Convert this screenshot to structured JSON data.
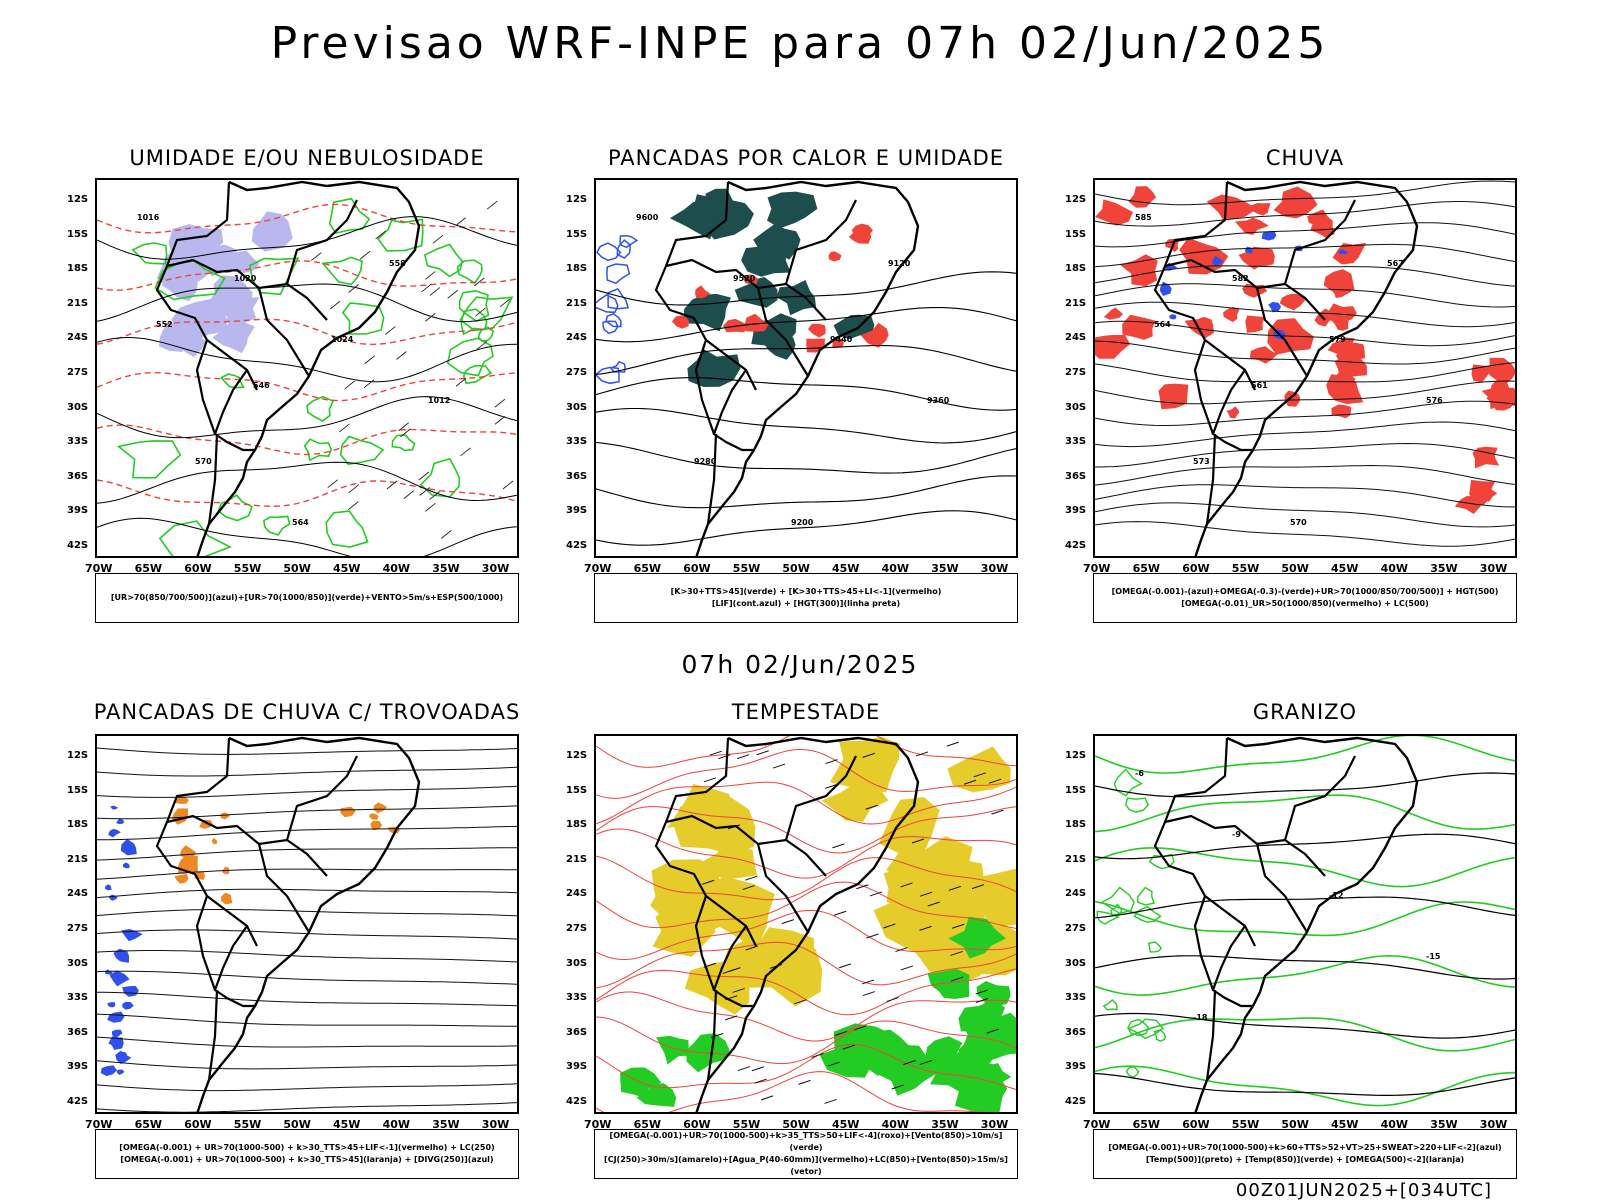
{
  "header": {
    "title": "Previsao WRF-INPE  para 07h 02/Jun/2025"
  },
  "middle": {
    "date": "07h 02/Jun/2025"
  },
  "footer": {
    "run": "00Z01JUN2025+[034UTC]"
  },
  "axes": {
    "lat": [
      "12S",
      "15S",
      "18S",
      "21S",
      "24S",
      "27S",
      "30S",
      "33S",
      "36S",
      "39S",
      "42S"
    ],
    "lon": [
      "70W",
      "65W",
      "60W",
      "55W",
      "50W",
      "45W",
      "40W",
      "35W",
      "30W"
    ]
  },
  "panels": [
    {
      "title": "UMIDADE E/OU NEBULOSIDADE",
      "legend": [
        "[UR>70(850/700/500)](azul)+[UR>70(1000/850)](verde)+VENTO>5m/s+ESP(500/1000)"
      ],
      "labels": [
        "1016",
        "1020",
        "1024",
        "1012",
        "570",
        "564",
        "558",
        "552",
        "546"
      ]
    },
    {
      "title": "PANCADAS POR CALOR E UMIDADE",
      "legend": [
        "[K>30+TTS>45](verde) + [K>30+TTS>45+LI<-1](vermelho)",
        "[LIF](cont.azul) + [HGT(300)](linha preta)"
      ],
      "labels": [
        "9600",
        "9520",
        "9440",
        "9360",
        "9280",
        "9200",
        "9120"
      ]
    },
    {
      "title": "CHUVA",
      "legend": [
        "[OMEGA(-0.001)-(azul)+OMEGA(-0.3)-(verde)+UR>70(1000/850/700/500)] + HGT(500)",
        "[OMEGA(-0.01)_UR>50(1000/850)(vermelho) + LC(500)"
      ],
      "labels": [
        "585",
        "582",
        "579",
        "576",
        "573",
        "570",
        "567",
        "564",
        "561"
      ]
    },
    {
      "title": "PANCADAS DE CHUVA C/ TROVOADAS",
      "legend": [
        "[OMEGA(-0.001) + UR>70(1000-500) + k>30_TTS>45+LIF<-1](vermelho) + LC(250)",
        "[OMEGA(-0.001) + UR>70(1000-500) + k>30_TTS>45](laranja) + [DIVG(250)](azul)"
      ],
      "labels": []
    },
    {
      "title": "TEMPESTADE",
      "legend": [
        "[OMEGA(-0.001)+UR>70(1000-500)+k>35_TTS>50+LIF<-4](roxo)+[Vento(850)>10m/s](verde)",
        "[CJ(250)>30m/s](amarelo)+[Agua_P(40-60mm)](vermelho)+LC(850)+[Vento(850)>15m/s](vetor)"
      ],
      "labels": []
    },
    {
      "title": "GRANIZO",
      "legend": [
        "[OMEGA(-0.001)+UR>70(1000-500)+k>60+TTS>52+VT>25+SWEAT>220+LIF<-2](azul)",
        "[Temp(500)](preto) + [Temp(850)](verde) + [OMEGA(500)<-2](laranja)"
      ],
      "labels": [
        "-6",
        "-9",
        "-12",
        "-15",
        "-18"
      ]
    }
  ],
  "colors": {
    "red": "#f0443a",
    "green": "#22cc22",
    "blue": "#3050ee",
    "lavender": "#b8b8ee",
    "teal": "#1e4d4d",
    "yellow": "#e6cc2a",
    "orange": "#ee8822",
    "black": "#000000"
  }
}
